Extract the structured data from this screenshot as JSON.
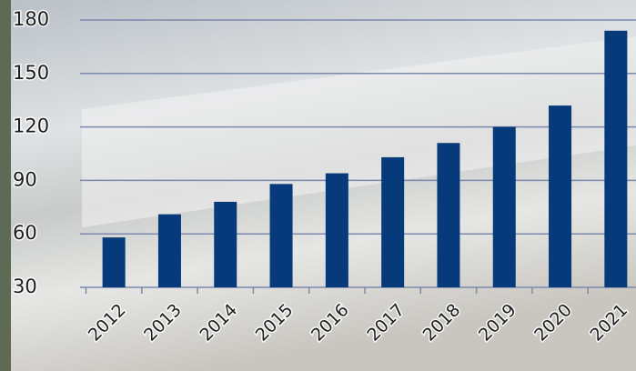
{
  "chart_data": {
    "type": "bar",
    "categories": [
      "2012",
      "2013",
      "2014",
      "2015",
      "2016",
      "2017",
      "2018",
      "2019",
      "2020",
      "2021"
    ],
    "values": [
      58,
      71,
      78,
      88,
      94,
      103,
      111,
      120,
      132,
      174
    ],
    "color": "#063a7a",
    "ylim": [
      30,
      180
    ],
    "yticks": [
      30,
      60,
      90,
      120,
      150,
      180
    ],
    "grid": true
  }
}
